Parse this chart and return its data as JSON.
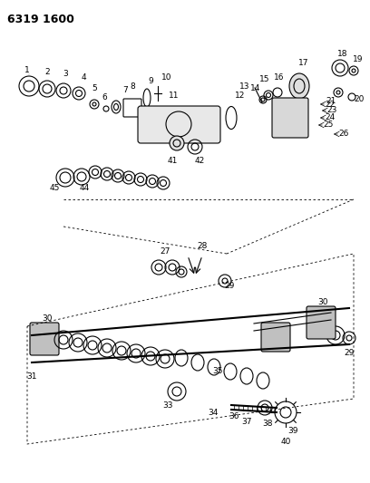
{
  "title": "6319 1600",
  "bg_color": "#ffffff",
  "fg_color": "#000000",
  "figsize": [
    4.08,
    5.33
  ],
  "dpi": 100
}
